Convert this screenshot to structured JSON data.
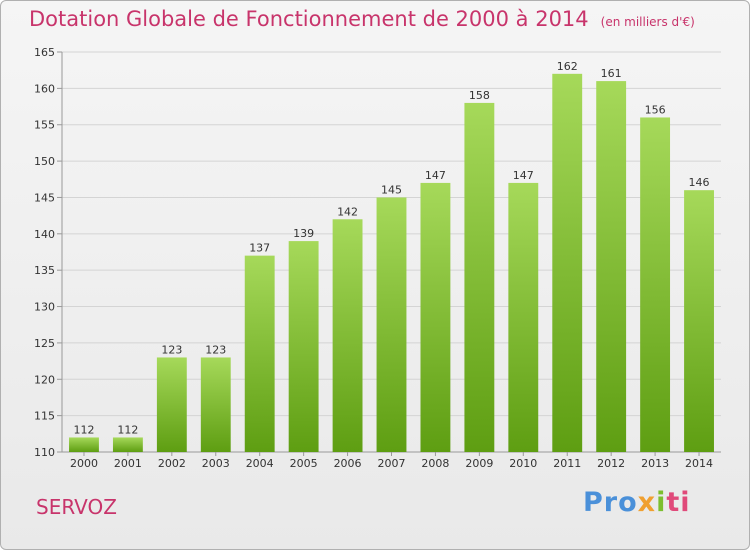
{
  "title": "Dotation Globale de Fonctionnement de 2000 à 2014",
  "unit_note": "(en milliers d'€)",
  "commune": "SERVOZ",
  "logo": {
    "part1": "Pro",
    "part2": "x",
    "part3": "i",
    "part4": "ti"
  },
  "colors": {
    "title": "#c8346b",
    "bar_top": "#a6d95a",
    "bar_bottom": "#5e9e12"
  },
  "chart_data": {
    "type": "bar",
    "title": "Dotation Globale de Fonctionnement de 2000 à 2014",
    "subtitle": "(en milliers d'€)",
    "categories": [
      "2000",
      "2001",
      "2002",
      "2003",
      "2004",
      "2005",
      "2006",
      "2007",
      "2008",
      "2009",
      "2010",
      "2011",
      "2012",
      "2013",
      "2014"
    ],
    "values": [
      112,
      112,
      123,
      123,
      137,
      139,
      142,
      145,
      147,
      158,
      147,
      162,
      161,
      156,
      146
    ],
    "ylim": [
      110,
      165
    ],
    "yticks": [
      110,
      115,
      120,
      125,
      130,
      135,
      140,
      145,
      150,
      155,
      160,
      165
    ],
    "grid": true,
    "xlabel": "",
    "ylabel": ""
  }
}
